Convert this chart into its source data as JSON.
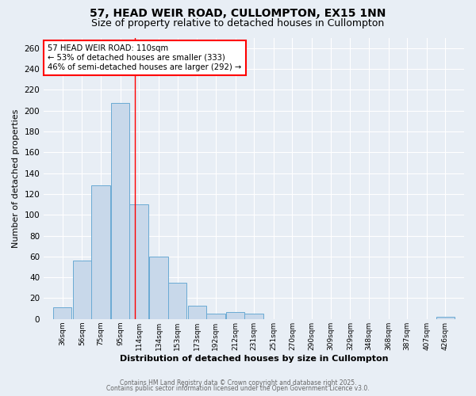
{
  "title_line1": "57, HEAD WEIR ROAD, CULLOMPTON, EX15 1NN",
  "title_line2": "Size of property relative to detached houses in Cullompton",
  "bin_centers": [
    36,
    56,
    75,
    95,
    114,
    134,
    153,
    173,
    192,
    212,
    231,
    251,
    270,
    290,
    309,
    329,
    348,
    368,
    387,
    407,
    426
  ],
  "bin_width": 19,
  "bar_heights": [
    11,
    56,
    128,
    207,
    110,
    60,
    35,
    13,
    5,
    7,
    5,
    0,
    0,
    0,
    0,
    0,
    0,
    0,
    0,
    0,
    2
  ],
  "x_tick_labels": [
    "36sqm",
    "56sqm",
    "75sqm",
    "95sqm",
    "114sqm",
    "134sqm",
    "153sqm",
    "173sqm",
    "192sqm",
    "212sqm",
    "231sqm",
    "251sqm",
    "270sqm",
    "290sqm",
    "309sqm",
    "329sqm",
    "348sqm",
    "368sqm",
    "387sqm",
    "407sqm",
    "426sqm"
  ],
  "ylabel": "Number of detached properties",
  "xlabel": "Distribution of detached houses by size in Cullompton",
  "ylim": [
    0,
    270
  ],
  "yticks": [
    0,
    20,
    40,
    60,
    80,
    100,
    120,
    140,
    160,
    180,
    200,
    220,
    240,
    260
  ],
  "red_line_x": 110,
  "bar_color": "#c8d8ea",
  "bar_edge_color": "#6aaad4",
  "annotation_text": "57 HEAD WEIR ROAD: 110sqm\n← 53% of detached houses are smaller (333)\n46% of semi-detached houses are larger (292) →",
  "annotation_box_color": "white",
  "annotation_box_edge_color": "red",
  "footer_line1": "Contains HM Land Registry data © Crown copyright and database right 2025.",
  "footer_line2": "Contains public sector information licensed under the Open Government Licence v3.0.",
  "background_color": "#e8eef5",
  "plot_background_color": "#e8eef5",
  "grid_color": "#ffffff",
  "title_fontsize": 10,
  "subtitle_fontsize": 9,
  "ylabel_fontsize": 8,
  "xlabel_fontsize": 8
}
